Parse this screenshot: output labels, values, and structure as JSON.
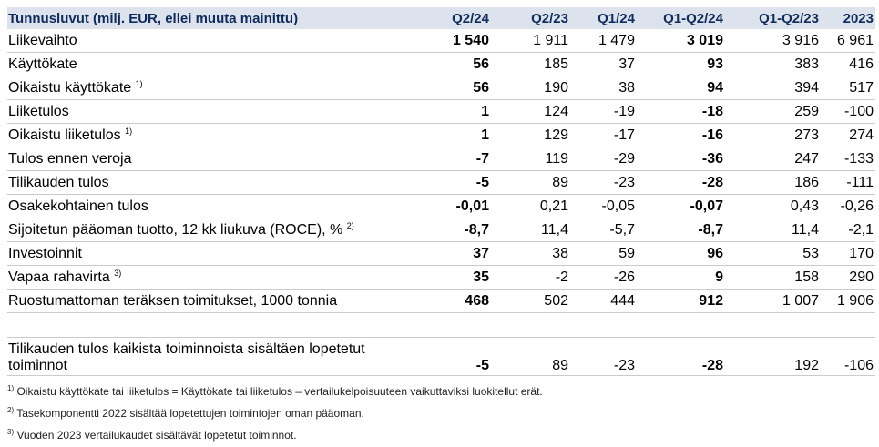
{
  "header": {
    "label": "Tunnusluvut (milj. EUR, ellei muuta mainittu)",
    "columns": [
      "Q2/24",
      "Q2/23",
      "Q1/24",
      "Q1-Q2/24",
      "Q1-Q2/23",
      "2023"
    ]
  },
  "rows": [
    {
      "label": "Liikevaihto",
      "note": "",
      "values": [
        "1 540",
        "1 911",
        "1 479",
        "3 019",
        "3 916",
        "6 961"
      ]
    },
    {
      "label": "Käyttökate",
      "note": "",
      "values": [
        "56",
        "185",
        "37",
        "93",
        "383",
        "416"
      ]
    },
    {
      "label": "Oikaistu käyttökate",
      "note": "1)",
      "values": [
        "56",
        "190",
        "38",
        "94",
        "394",
        "517"
      ]
    },
    {
      "label": "Liiketulos",
      "note": "",
      "values": [
        "1",
        "124",
        "-19",
        "-18",
        "259",
        "-100"
      ]
    },
    {
      "label": "Oikaistu liiketulos",
      "note": "1)",
      "values": [
        "1",
        "129",
        "-17",
        "-16",
        "273",
        "274"
      ]
    },
    {
      "label": "Tulos ennen veroja",
      "note": "",
      "values": [
        "-7",
        "119",
        "-29",
        "-36",
        "247",
        "-133"
      ]
    },
    {
      "label": "Tilikauden tulos",
      "note": "",
      "values": [
        "-5",
        "89",
        "-23",
        "-28",
        "186",
        "-111"
      ]
    },
    {
      "label": "Osakekohtainen tulos",
      "note": "",
      "values": [
        "-0,01",
        "0,21",
        "-0,05",
        "-0,07",
        "0,43",
        "-0,26"
      ]
    },
    {
      "label": "Sijoitetun pääoman tuotto, 12 kk liukuva (ROCE), %",
      "note": "2)",
      "values": [
        "-8,7",
        "11,4",
        "-5,7",
        "-8,7",
        "11,4",
        "-2,1"
      ]
    },
    {
      "label": "Investoinnit",
      "note": "",
      "values": [
        "37",
        "38",
        "59",
        "96",
        "53",
        "170"
      ]
    },
    {
      "label": "Vapaa rahavirta",
      "note": "3)",
      "values": [
        "35",
        "-2",
        "-26",
        "9",
        "158",
        "290"
      ]
    },
    {
      "label": "Ruostumattoman teräksen toimitukset, 1000 tonnia",
      "note": "",
      "values": [
        "468",
        "502",
        "444",
        "912",
        "1 007",
        "1 906"
      ]
    }
  ],
  "extra_row": {
    "label": "Tilikauden tulos kaikista toiminnoista sisältäen lopetetut toiminnot",
    "values": [
      "-5",
      "89",
      "-23",
      "-28",
      "192",
      "-106"
    ]
  },
  "footnotes": [
    {
      "mark": "1)",
      "text": " Oikaistu käyttökate tai liiketulos = Käyttökate tai liiketulos – vertailukelpoisuuteen vaikuttaviksi luokitellut erät."
    },
    {
      "mark": "2)",
      "text": " Tasekomponentti 2022 sisältää lopetettujen toimintojen oman pääoman."
    },
    {
      "mark": "3)",
      "text": " Vuoden 2023 vertailukaudet sisältävät lopetetut toiminnot."
    }
  ],
  "colors": {
    "header_bg": "#dce3ec",
    "header_text": "#0f2b5b",
    "rule": "#c7ccd3"
  }
}
